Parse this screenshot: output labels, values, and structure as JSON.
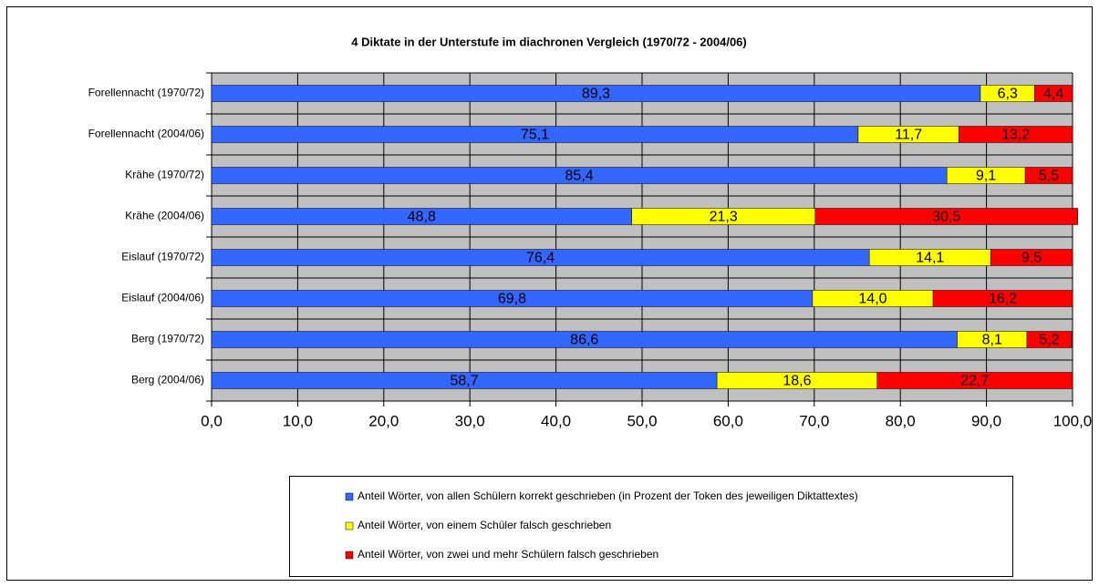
{
  "chart_data": {
    "type": "stacked_barh",
    "title": "4 Diktate in der Unterstufe im diachronen Vergleich (1970/72 - 2004/06)",
    "categories": [
      "Forellennacht (1970/72)",
      "Forellennacht (2004/06)",
      "Krähe (1970/72)",
      "Krähe (2004/06)",
      "Eislauf (1970/72)",
      "Eislauf (2004/06)",
      "Berg (1970/72)",
      "Berg (2004/06)"
    ],
    "series": [
      {
        "name": "Anteil Wörter, von allen Schülern korrekt geschrieben (in Prozent der Token des jeweiligen Diktattextes)",
        "color": "#3366ff",
        "values": [
          89.3,
          75.1,
          85.4,
          48.8,
          76.4,
          69.8,
          86.6,
          58.7
        ],
        "value_labels": [
          "89,3",
          "75,1",
          "85,4",
          "48,8",
          "76,4",
          "69,8",
          "86,6",
          "58,7"
        ]
      },
      {
        "name": "Anteil Wörter, von einem Schüler falsch geschrieben",
        "color": "#ffff00",
        "values": [
          6.3,
          11.7,
          9.1,
          21.3,
          14.1,
          14.0,
          8.1,
          18.6
        ],
        "value_labels": [
          "6,3",
          "11,7",
          "9,1",
          "21,3",
          "14,1",
          "14,0",
          "8,1",
          "18,6"
        ]
      },
      {
        "name": "Anteil Wörter, von zwei und mehr Schülern falsch geschrieben",
        "color": "#ff0000",
        "values": [
          4.4,
          13.2,
          5.5,
          30.5,
          9.5,
          16.2,
          5.2,
          22.7
        ],
        "value_labels": [
          "4,4",
          "13,2",
          "5,5",
          "30,5",
          "9,5",
          "16,2",
          "5,2",
          "22,7"
        ]
      }
    ],
    "xlim": [
      0,
      100
    ],
    "xticks": [
      {
        "value": 0,
        "label": "0,0"
      },
      {
        "value": 10,
        "label": "10,0"
      },
      {
        "value": 20,
        "label": "20,0"
      },
      {
        "value": 30,
        "label": "30,0"
      },
      {
        "value": 40,
        "label": "40,0"
      },
      {
        "value": 50,
        "label": "50,0"
      },
      {
        "value": 60,
        "label": "60,0"
      },
      {
        "value": 70,
        "label": "70,0"
      },
      {
        "value": 80,
        "label": "80,0"
      },
      {
        "value": 90,
        "label": "90,0"
      },
      {
        "value": 100,
        "label": "100,0"
      }
    ],
    "grid": true,
    "legend": "bottom"
  }
}
